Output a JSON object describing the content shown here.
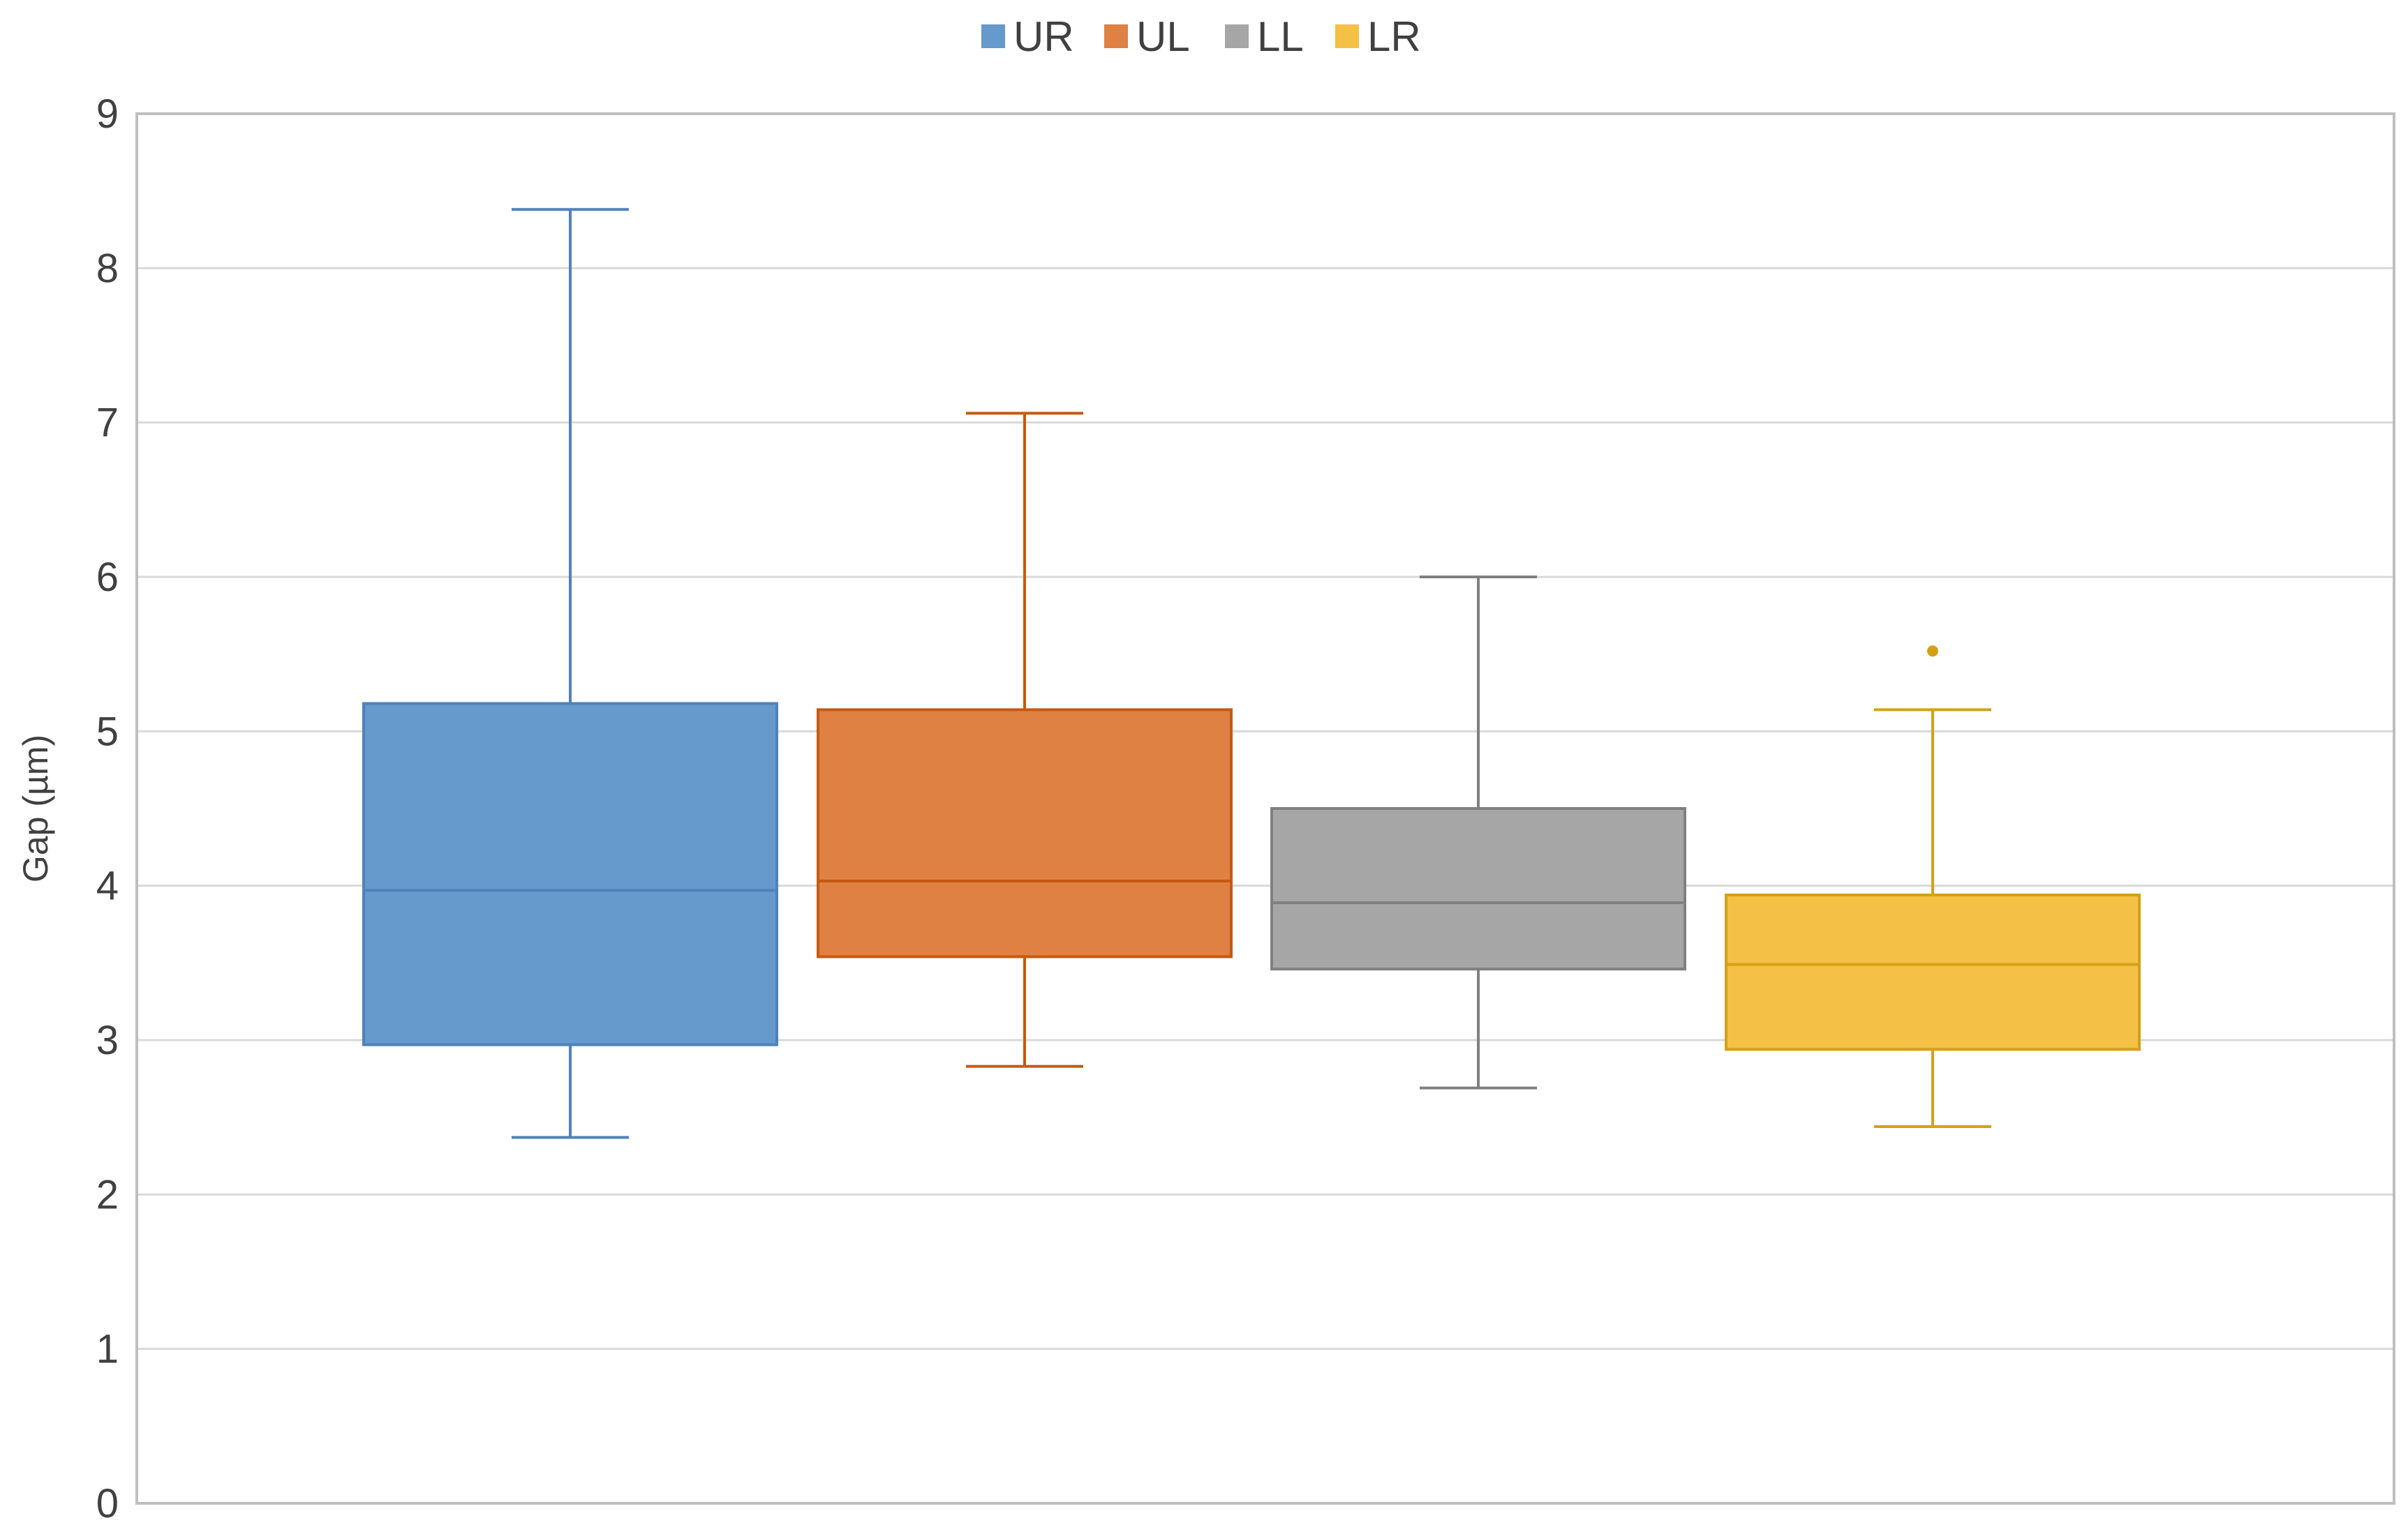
{
  "chart_data": {
    "type": "box",
    "title": "",
    "xlabel": "",
    "ylabel": "Gap (µm)",
    "ylim": [
      0,
      9
    ],
    "yticks": [
      "0",
      "1",
      "2",
      "3",
      "4",
      "5",
      "6",
      "7",
      "8",
      "9"
    ],
    "grid": true,
    "legend_position": "top",
    "series": [
      {
        "name": "UR",
        "color": "#6699cc",
        "stroke": "#4f81bd",
        "min": 2.37,
        "q1": 2.97,
        "median": 3.97,
        "q3": 5.18,
        "max": 8.38,
        "outliers": []
      },
      {
        "name": "UL",
        "color": "#df8142",
        "stroke": "#c55a11",
        "min": 2.83,
        "q1": 3.54,
        "median": 4.03,
        "q3": 5.14,
        "max": 7.06,
        "outliers": []
      },
      {
        "name": "LL",
        "color": "#a6a6a6",
        "stroke": "#808080",
        "min": 2.69,
        "q1": 3.46,
        "median": 3.89,
        "q3": 4.5,
        "max": 6.0,
        "outliers": []
      },
      {
        "name": "LR",
        "color": "#f4c045",
        "stroke": "#d4a017",
        "min": 2.44,
        "q1": 2.94,
        "median": 3.49,
        "q3": 3.94,
        "max": 5.14,
        "outliers": [
          5.52
        ]
      }
    ]
  }
}
